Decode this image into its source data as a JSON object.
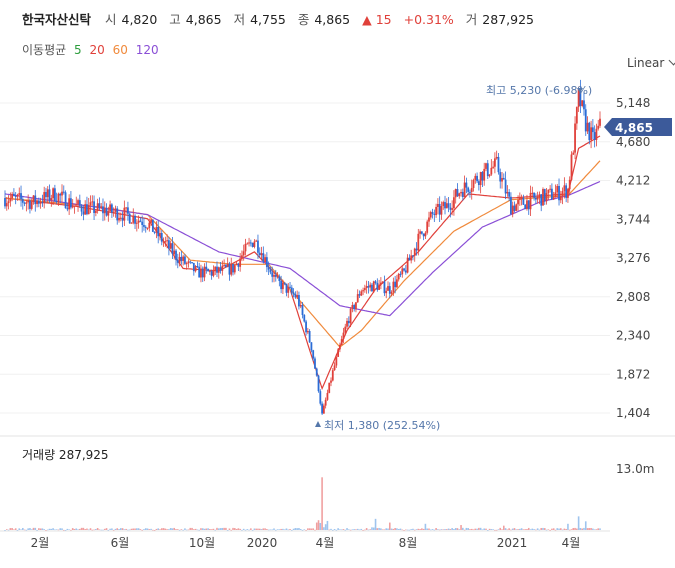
{
  "header": {
    "name": "한국자산신탁",
    "open_label": "시",
    "open": "4,820",
    "high_label": "고",
    "high": "4,865",
    "low_label": "저",
    "low": "4,755",
    "close_label": "종",
    "close": "4,865",
    "change": "15",
    "change_pct": "+0.31%",
    "volume_label": "거",
    "volume": "287,925"
  },
  "ma_legend": {
    "label": "이동평균",
    "items": [
      {
        "label": "5",
        "color": "#2e9e3e"
      },
      {
        "label": "20",
        "color": "#e0403a"
      },
      {
        "label": "60",
        "color": "#f08a3c"
      },
      {
        "label": "120",
        "color": "#8a4fd6"
      }
    ]
  },
  "scale_toggle": "Linear",
  "chart_data": {
    "type": "candlestick",
    "y_ticks": [
      "5,148",
      "4,680",
      "4,212",
      "3,744",
      "3,276",
      "2,808",
      "2,340",
      "1,872",
      "1,404"
    ],
    "y_tick_values": [
      5148,
      4680,
      4212,
      3744,
      3276,
      2808,
      2340,
      1872,
      1404
    ],
    "x_ticks": [
      "2월",
      "6월",
      "10월",
      "2020",
      "4월",
      "8월",
      "2021",
      "4월"
    ],
    "current_price_label": "4,865",
    "high_annotation": "최고 5,230 (-6.98%)",
    "low_annotation": "최저 1,380 (252.54%)",
    "price_path_points": [
      [
        0,
        4000
      ],
      [
        8,
        3950
      ],
      [
        14,
        4050
      ],
      [
        20,
        3900
      ],
      [
        28,
        3850
      ],
      [
        34,
        3800
      ],
      [
        40,
        3700
      ],
      [
        44,
        3500
      ],
      [
        48,
        3300
      ],
      [
        54,
        3100
      ],
      [
        58,
        3100
      ],
      [
        64,
        3150
      ],
      [
        68,
        3400
      ],
      [
        70,
        3500
      ],
      [
        72,
        3350
      ],
      [
        76,
        3000
      ],
      [
        82,
        2800
      ],
      [
        86,
        2200
      ],
      [
        88,
        1700
      ],
      [
        89,
        1380
      ],
      [
        92,
        1900
      ],
      [
        96,
        2500
      ],
      [
        100,
        2900
      ],
      [
        104,
        2950
      ],
      [
        108,
        2900
      ],
      [
        112,
        3100
      ],
      [
        116,
        3500
      ],
      [
        120,
        3800
      ],
      [
        124,
        3900
      ],
      [
        128,
        4100
      ],
      [
        130,
        4150
      ],
      [
        134,
        4300
      ],
      [
        138,
        4400
      ],
      [
        142,
        3900
      ],
      [
        146,
        3950
      ],
      [
        150,
        4000
      ],
      [
        154,
        4050
      ],
      [
        158,
        4100
      ],
      [
        160,
        4800
      ],
      [
        161,
        5230
      ],
      [
        163,
        4900
      ],
      [
        165,
        4700
      ],
      [
        167,
        4865
      ]
    ],
    "ma_series": [
      {
        "color": "#e0403a",
        "points": [
          [
            0,
            4000
          ],
          [
            20,
            3900
          ],
          [
            40,
            3750
          ],
          [
            50,
            3150
          ],
          [
            60,
            3120
          ],
          [
            70,
            3350
          ],
          [
            80,
            2900
          ],
          [
            89,
            1700
          ],
          [
            96,
            2400
          ],
          [
            104,
            2900
          ],
          [
            116,
            3350
          ],
          [
            130,
            4050
          ],
          [
            142,
            4000
          ],
          [
            158,
            4050
          ],
          [
            161,
            4600
          ],
          [
            167,
            4750
          ]
        ]
      },
      {
        "color": "#f08a3c",
        "points": [
          [
            0,
            4000
          ],
          [
            25,
            3900
          ],
          [
            40,
            3800
          ],
          [
            52,
            3250
          ],
          [
            64,
            3200
          ],
          [
            74,
            3200
          ],
          [
            84,
            2700
          ],
          [
            94,
            2200
          ],
          [
            100,
            2400
          ],
          [
            112,
            3000
          ],
          [
            126,
            3600
          ],
          [
            142,
            3980
          ],
          [
            158,
            4030
          ],
          [
            167,
            4450
          ]
        ]
      },
      {
        "color": "#8a4fd6",
        "points": [
          [
            0,
            4050
          ],
          [
            24,
            3900
          ],
          [
            40,
            3800
          ],
          [
            60,
            3350
          ],
          [
            80,
            3150
          ],
          [
            94,
            2700
          ],
          [
            108,
            2580
          ],
          [
            120,
            3100
          ],
          [
            134,
            3650
          ],
          [
            150,
            3950
          ],
          [
            158,
            4030
          ],
          [
            167,
            4200
          ]
        ]
      }
    ],
    "volume_label": "거래량 287,925",
    "volume_axis_label": "13.0m",
    "volume_spikes": [
      [
        89,
        0.85
      ],
      [
        104,
        0.18
      ],
      [
        108,
        0.12
      ],
      [
        118,
        0.1
      ],
      [
        128,
        0.08
      ],
      [
        140,
        0.07
      ],
      [
        158,
        0.1
      ],
      [
        161,
        0.22
      ],
      [
        163,
        0.14
      ]
    ]
  }
}
